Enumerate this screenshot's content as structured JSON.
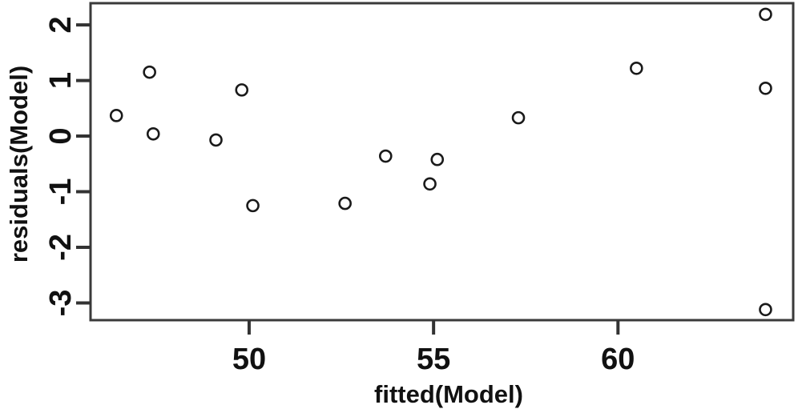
{
  "chart_data": {
    "type": "scatter",
    "title": "",
    "xlabel": "fitted(Model)",
    "ylabel": "residuals(Model)",
    "x_ticks": [
      50,
      55,
      60
    ],
    "y_ticks": [
      2,
      1,
      0,
      -1,
      -2,
      -3
    ],
    "xlim": [
      45.7,
      64.75
    ],
    "ylim": [
      -3.31,
      2.39
    ],
    "grid": false,
    "legend": "none",
    "marker": "open-circle",
    "points": [
      {
        "x": 46.4,
        "y": 0.37
      },
      {
        "x": 47.3,
        "y": 1.15
      },
      {
        "x": 47.4,
        "y": 0.04
      },
      {
        "x": 49.1,
        "y": -0.07
      },
      {
        "x": 49.8,
        "y": 0.83
      },
      {
        "x": 50.1,
        "y": -1.25
      },
      {
        "x": 52.6,
        "y": -1.21
      },
      {
        "x": 53.7,
        "y": -0.36
      },
      {
        "x": 54.9,
        "y": -0.86
      },
      {
        "x": 55.1,
        "y": -0.42
      },
      {
        "x": 57.3,
        "y": 0.33
      },
      {
        "x": 60.5,
        "y": 1.22
      },
      {
        "x": 64.0,
        "y": 2.19
      },
      {
        "x": 64.0,
        "y": 0.86
      },
      {
        "x": 64.0,
        "y": -3.12
      }
    ],
    "colors": {
      "background": "#ffffff",
      "box": "#3a3a3a",
      "tick": "#333333",
      "text": "#111111",
      "point_stroke": "#1a1a1a"
    }
  }
}
